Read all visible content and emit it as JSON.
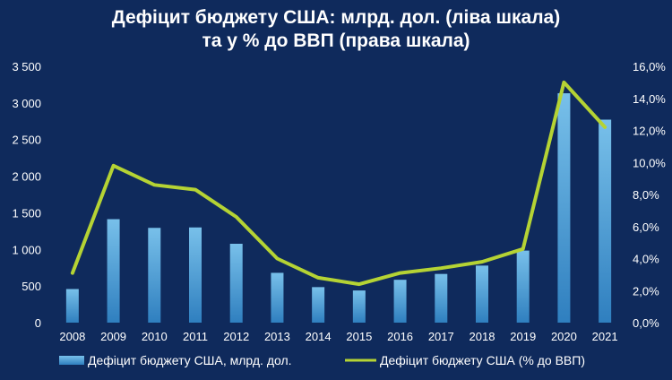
{
  "chart_data": {
    "type": "bar",
    "title_lines": [
      "Дефіцит бюджету США: млрд. дол. (ліва шкала)",
      "та у % до ВВП (права шкала)"
    ],
    "categories": [
      "2008",
      "2009",
      "2010",
      "2011",
      "2012",
      "2013",
      "2014",
      "2015",
      "2016",
      "2017",
      "2018",
      "2019",
      "2020",
      "2021"
    ],
    "series": [
      {
        "name": "Дефіцит бюджету США, млрд. дол.",
        "type": "bar",
        "axis": "left",
        "values": [
          459,
          1413,
          1294,
          1300,
          1077,
          680,
          485,
          439,
          585,
          665,
          779,
          984,
          3132,
          2772
        ]
      },
      {
        "name": "Дефіцит бюджету США (% до ВВП)",
        "type": "line",
        "axis": "right",
        "values": [
          3.1,
          9.8,
          8.6,
          8.3,
          6.6,
          4.0,
          2.8,
          2.4,
          3.1,
          3.4,
          3.8,
          4.6,
          15.0,
          12.2
        ]
      }
    ],
    "y_left": {
      "min": 0,
      "max": 3500,
      "ticks": [
        "0",
        "500",
        "1 000",
        "1 500",
        "2 000",
        "2 500",
        "3 000",
        "3 500"
      ]
    },
    "y_right": {
      "min": 0,
      "max": 16,
      "ticks": [
        "0,0%",
        "2,0%",
        "4,0%",
        "6,0%",
        "8,0%",
        "10,0%",
        "12,0%",
        "14,0%",
        "16,0%"
      ]
    },
    "grid": false,
    "legend_position": "bottom",
    "colors": {
      "background": "#0f2a5c",
      "bar": "#4a9fd6",
      "bar_top": "#78c0ea",
      "line": "#b5d334",
      "text": "#ffffff"
    }
  }
}
